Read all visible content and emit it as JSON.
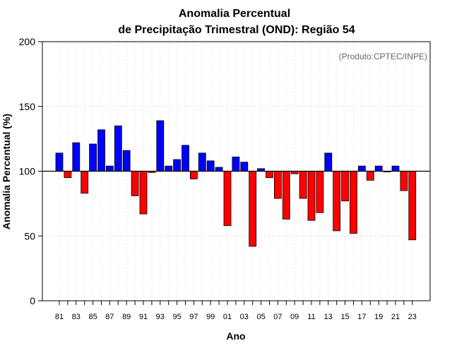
{
  "chart_data": {
    "type": "bar",
    "title_line1": "Anomalia Percentual",
    "title_line2": "de Precipitação Trimestral (OND): Região 54",
    "xlabel": "Ano",
    "ylabel": "Anomalia Percentual (%)",
    "source_note": "(Produto:CPTEC/INPE)",
    "baseline": 100,
    "ylim": [
      0,
      200
    ],
    "yticks": [
      0,
      50,
      100,
      150,
      200
    ],
    "grid": true,
    "colors": {
      "above": "#0000ff",
      "below": "#ff0000",
      "edge": "#000000"
    },
    "years": [
      "81",
      "82",
      "83",
      "84",
      "85",
      "86",
      "87",
      "88",
      "89",
      "90",
      "91",
      "92",
      "93",
      "94",
      "95",
      "96",
      "97",
      "98",
      "99",
      "00",
      "01",
      "02",
      "03",
      "04",
      "05",
      "06",
      "07",
      "08",
      "09",
      "10",
      "11",
      "12",
      "13",
      "14",
      "15",
      "16",
      "17",
      "18",
      "19",
      "20",
      "21",
      "22",
      "23"
    ],
    "xtick_labels": [
      "81",
      "83",
      "85",
      "87",
      "89",
      "91",
      "93",
      "95",
      "97",
      "99",
      "01",
      "03",
      "05",
      "07",
      "09",
      "11",
      "13",
      "15",
      "17",
      "19",
      "21",
      "23"
    ],
    "values": [
      114,
      95,
      122,
      83,
      121,
      132,
      104,
      135,
      116,
      81,
      67,
      99,
      139,
      104,
      109,
      120,
      94,
      114,
      108,
      103,
      58,
      111,
      107,
      42,
      102,
      95,
      79,
      63,
      98,
      79,
      62,
      68,
      114,
      54,
      77,
      52,
      104,
      93,
      104,
      100,
      104,
      85,
      47
    ]
  }
}
